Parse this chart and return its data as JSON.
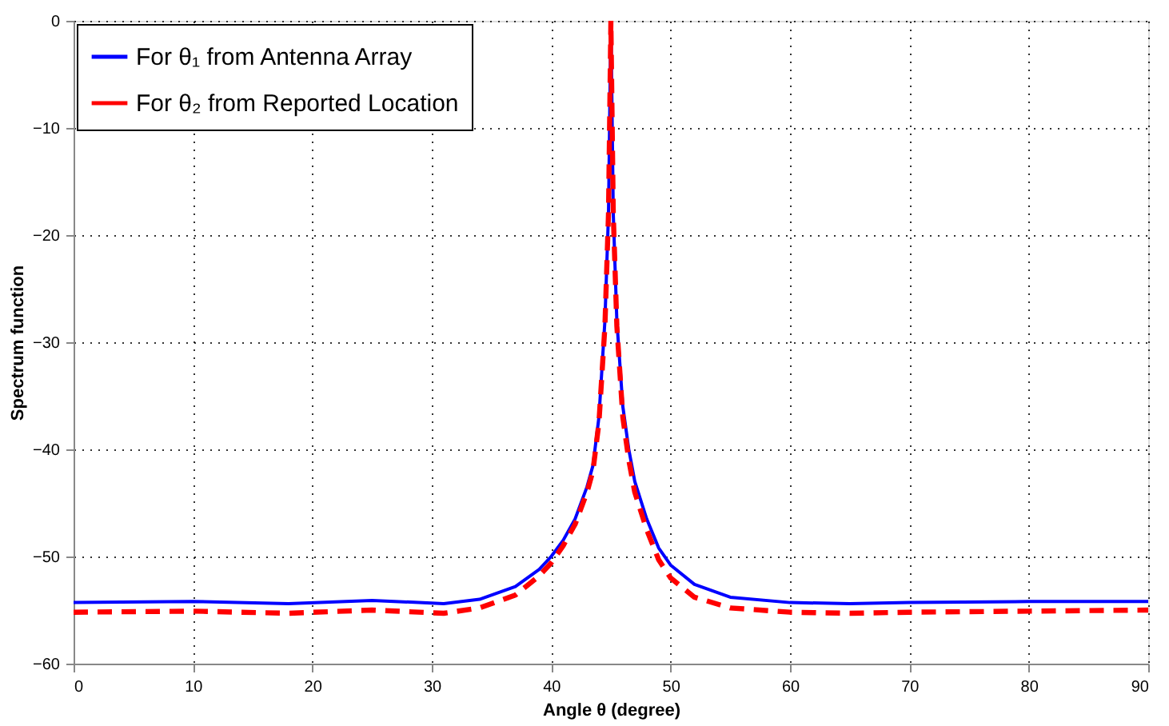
{
  "chart_data": {
    "type": "line",
    "xlabel": "Angle θ (degree)",
    "ylabel": "Spectrum function",
    "xlim": [
      0,
      90
    ],
    "xticks": [
      0,
      10,
      20,
      30,
      40,
      50,
      60,
      70,
      80,
      90
    ],
    "ylim": [
      -60,
      0
    ],
    "yticks": [
      -60,
      -50,
      -40,
      -30,
      -20,
      -10,
      0
    ],
    "grid": true,
    "legend": "top left",
    "marker": "none",
    "series": [
      {
        "name": "For θ₁ from Antenna Array",
        "color": "#0000ff",
        "line_style": "solid",
        "x": [
          0,
          10,
          18,
          25,
          31,
          34,
          37,
          39,
          40,
          41,
          42,
          43,
          43.5,
          44,
          44.5,
          44.8,
          45,
          45.2,
          45.5,
          46,
          46.5,
          47,
          48,
          49,
          50,
          52,
          55,
          60,
          65,
          70,
          80,
          90
        ],
        "values": [
          -54.3,
          -54.2,
          -54.4,
          -54.1,
          -54.4,
          -54.0,
          -52.8,
          -51.2,
          -50.0,
          -48.5,
          -46.5,
          -43.5,
          -41.5,
          -37,
          -28,
          -18,
          0,
          -18,
          -28,
          -36,
          -40,
          -43,
          -46.5,
          -49.2,
          -50.8,
          -52.6,
          -53.8,
          -54.3,
          -54.4,
          -54.3,
          -54.2,
          -54.2
        ]
      },
      {
        "name": "For θ₂ from Reported Location",
        "color": "#ff0000",
        "line_style": "dashed",
        "x": [
          0,
          10,
          18,
          25,
          31,
          34,
          37,
          39,
          40,
          41,
          42,
          43,
          43.5,
          44,
          44.5,
          44.8,
          45,
          45.2,
          45.5,
          46,
          46.5,
          47,
          48,
          49,
          50,
          52,
          55,
          60,
          65,
          70,
          80,
          90
        ],
        "values": [
          -55.2,
          -55.1,
          -55.3,
          -55.0,
          -55.3,
          -54.8,
          -53.6,
          -51.8,
          -50.6,
          -49.0,
          -47.0,
          -44.0,
          -42,
          -37.5,
          -28.5,
          -18,
          0,
          -18,
          -28.5,
          -37,
          -41,
          -44,
          -47.5,
          -50.3,
          -52,
          -53.8,
          -54.8,
          -55.2,
          -55.3,
          -55.2,
          -55.1,
          -55.0
        ]
      }
    ]
  }
}
